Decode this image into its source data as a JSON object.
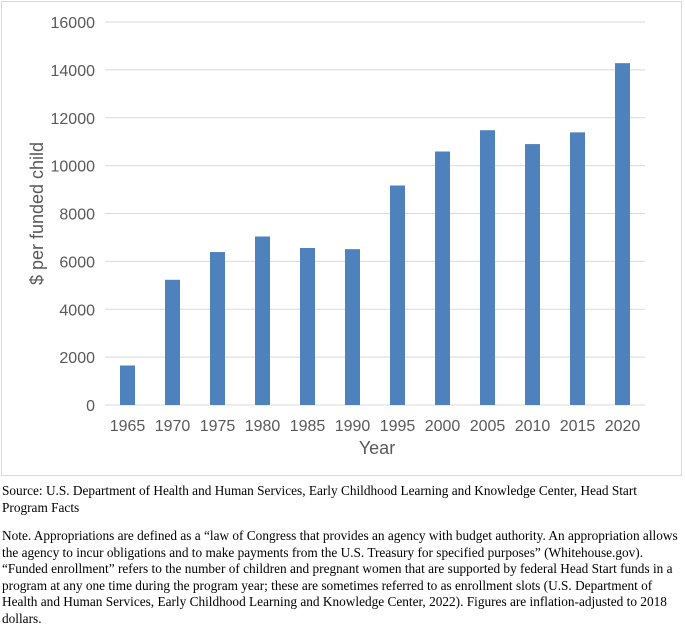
{
  "chart_data": {
    "type": "bar",
    "categories": [
      "1965",
      "1970",
      "1975",
      "1980",
      "1985",
      "1990",
      "1995",
      "2000",
      "2005",
      "2010",
      "2015",
      "2020"
    ],
    "values": [
      1650,
      5230,
      6390,
      7040,
      6560,
      6510,
      9170,
      10590,
      11480,
      10900,
      11390,
      14280
    ],
    "xlabel": "Year",
    "ylabel": "$ per funded child",
    "ylim": [
      0,
      16000
    ],
    "yticks": [
      0,
      2000,
      4000,
      6000,
      8000,
      10000,
      12000,
      14000,
      16000
    ],
    "grid": true,
    "bar_color": "#4f81bd",
    "grid_color": "#d9d9d9"
  },
  "source": "Source: U.S. Department of Health and Human Services, Early Childhood Learning and Knowledge Center, Head Start Program Facts",
  "note": "Note.  Appropriations are defined as a “law of Congress that provides an agency with budget authority. An appropriation allows the agency to incur obligations and to make payments from the U.S. Treasury for specified purposes” (Whitehouse.gov). “Funded enrollment” refers to the number of children and pregnant women that are supported by federal Head Start funds in a program at any one time during the program year; these are sometimes referred to as enrollment slots (U.S. Department of Health and Human Services, Early Childhood Learning and Knowledge Center, 2022). Figures are inflation-adjusted to 2018 dollars."
}
